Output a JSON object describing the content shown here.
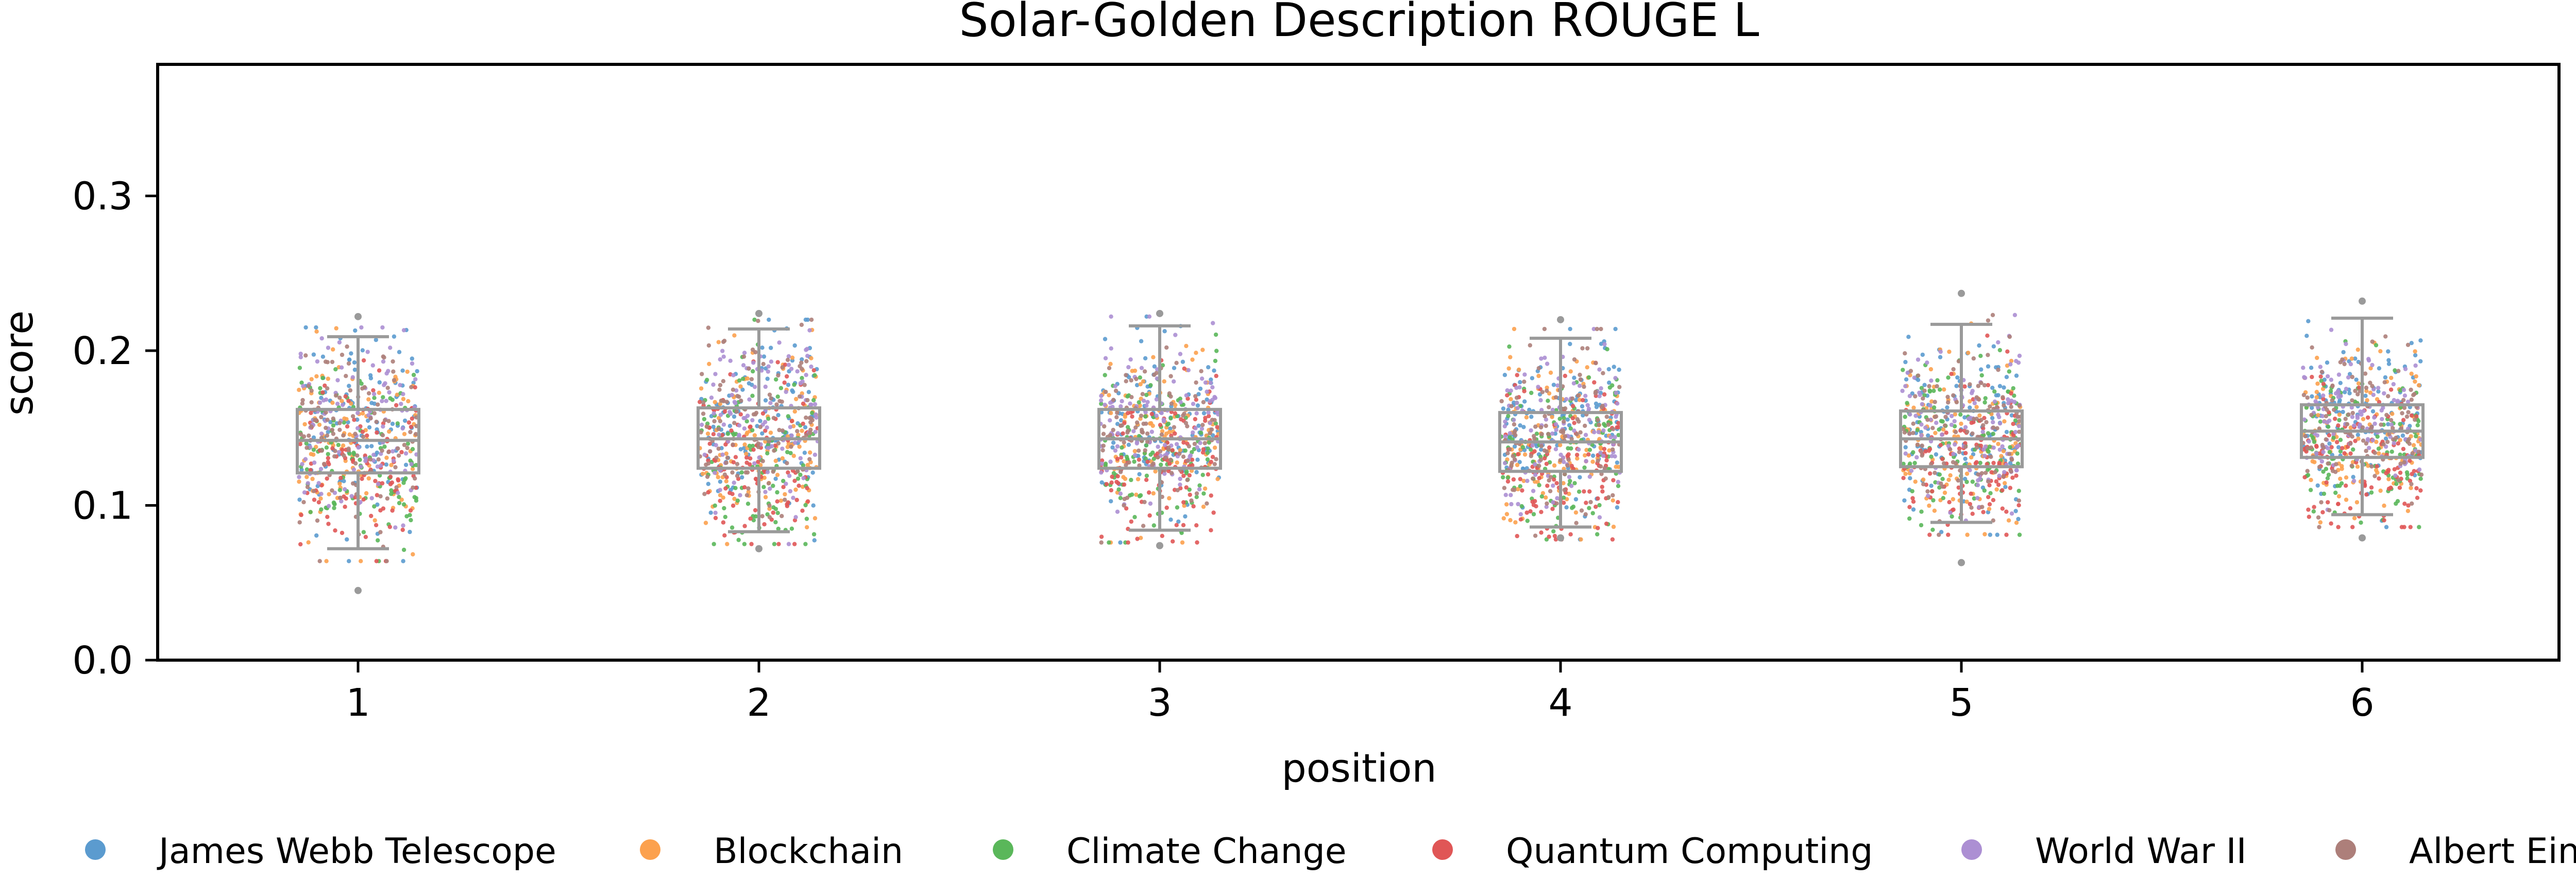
{
  "chart_data": {
    "type": "scatter",
    "title": "Solar-Golden Description ROUGE L",
    "xlabel": "position",
    "ylabel": "score",
    "ylim": [
      0.0,
      0.385
    ],
    "yticks": [
      0.0,
      0.1,
      0.2,
      0.3
    ],
    "ytick_labels": [
      "0.0",
      "0.1",
      "0.2",
      "0.3"
    ],
    "categories": [
      "1",
      "2",
      "3",
      "4",
      "5",
      "6"
    ],
    "grid": false,
    "legend": "bottom",
    "overlay": "box",
    "series": [
      {
        "name": "James Webb Telescope",
        "color": "#5b9bcf",
        "offset": 0.02
      },
      {
        "name": "Blockchain",
        "color": "#fca14e",
        "offset": 0.0
      },
      {
        "name": "Climate Change",
        "color": "#5ab75a",
        "offset": -0.01
      },
      {
        "name": "Quantum Computing",
        "color": "#e05656",
        "offset": -0.025
      },
      {
        "name": "World War II",
        "color": "#ac8fd3",
        "offset": 0.015
      },
      {
        "name": "Albert Einstein",
        "color": "#ad7f7a",
        "offset": 0.005
      }
    ],
    "boxes": [
      {
        "position": "1",
        "whisker_low": 0.072,
        "q1": 0.121,
        "median": 0.142,
        "q3": 0.162,
        "whisker_high": 0.209,
        "min": 0.045,
        "max": 0.222
      },
      {
        "position": "2",
        "whisker_low": 0.083,
        "q1": 0.124,
        "median": 0.143,
        "q3": 0.163,
        "whisker_high": 0.214,
        "min": 0.072,
        "max": 0.224
      },
      {
        "position": "3",
        "whisker_low": 0.084,
        "q1": 0.124,
        "median": 0.143,
        "q3": 0.162,
        "whisker_high": 0.216,
        "min": 0.074,
        "max": 0.224
      },
      {
        "position": "4",
        "whisker_low": 0.086,
        "q1": 0.122,
        "median": 0.141,
        "q3": 0.16,
        "whisker_high": 0.208,
        "min": 0.079,
        "max": 0.22
      },
      {
        "position": "5",
        "whisker_low": 0.089,
        "q1": 0.125,
        "median": 0.143,
        "q3": 0.161,
        "whisker_high": 0.217,
        "min": 0.063,
        "max": 0.237
      },
      {
        "position": "6",
        "whisker_low": 0.094,
        "q1": 0.131,
        "median": 0.148,
        "q3": 0.165,
        "whisker_high": 0.221,
        "min": 0.079,
        "max": 0.232
      }
    ]
  }
}
